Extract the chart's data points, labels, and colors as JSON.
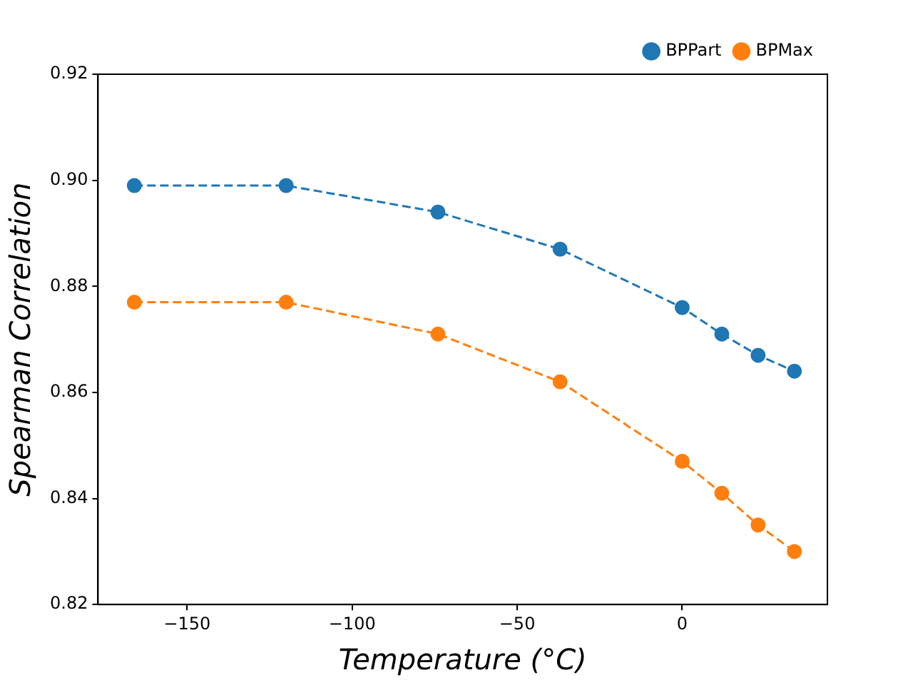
{
  "chart_data": {
    "type": "line",
    "xlabel": "Temperature (°C)",
    "ylabel": "Spearman Correlation",
    "x": [
      -166,
      -120,
      -74,
      -37,
      0,
      12,
      23,
      34
    ],
    "series": [
      {
        "name": "BPPart",
        "color": "#1f77b4",
        "values": [
          0.899,
          0.899,
          0.894,
          0.887,
          0.876,
          0.871,
          0.867,
          0.864
        ]
      },
      {
        "name": "BPMax",
        "color": "#ff7f0e",
        "values": [
          0.877,
          0.877,
          0.871,
          0.862,
          0.847,
          0.841,
          0.835,
          0.83
        ]
      }
    ],
    "xlim": [
      -177,
      44
    ],
    "xticks": [
      {
        "value": -150,
        "label": "−150"
      },
      {
        "value": -100,
        "label": "−100"
      },
      {
        "value": -50,
        "label": "−50"
      },
      0
    ],
    "ylim": [
      0.82,
      0.92
    ],
    "yticks": [
      0.82,
      0.84,
      0.86,
      0.88,
      {
        "value": 0.9,
        "label": "0.90"
      },
      0.92
    ],
    "grid": false,
    "legend": "top right",
    "marker": "circle",
    "line_style": "dashed"
  }
}
